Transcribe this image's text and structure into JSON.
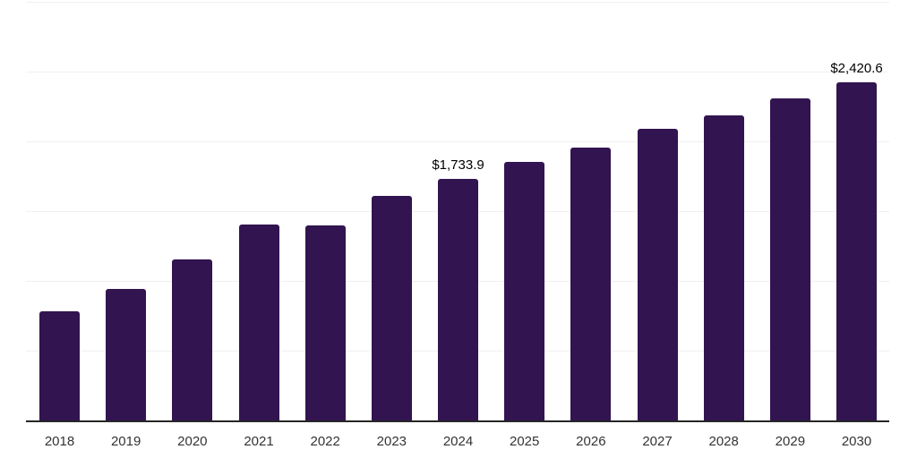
{
  "chart_data": {
    "type": "bar",
    "title": "",
    "xlabel": "",
    "ylabel": "",
    "categories": [
      "2018",
      "2019",
      "2020",
      "2021",
      "2022",
      "2023",
      "2024",
      "2025",
      "2026",
      "2027",
      "2028",
      "2029",
      "2030"
    ],
    "values": [
      780,
      945,
      1155,
      1405,
      1395,
      1610,
      1733.9,
      1850,
      1955,
      2090,
      2185,
      2305,
      2420.6
    ],
    "data_labels": {
      "2024": "$1,733.9",
      "2030": "$2,420.6"
    },
    "ylim": [
      0,
      3000
    ],
    "gridline_step": 500,
    "grid": "horizontal",
    "y_tick_labels_visible": false,
    "legend_position": "none",
    "colors": {
      "bar": "#321450",
      "axis_line": "#262626",
      "gridline": "#f0f0f0",
      "x_tick_label": "#333333",
      "data_label": "#000000",
      "background": "#ffffff"
    }
  }
}
